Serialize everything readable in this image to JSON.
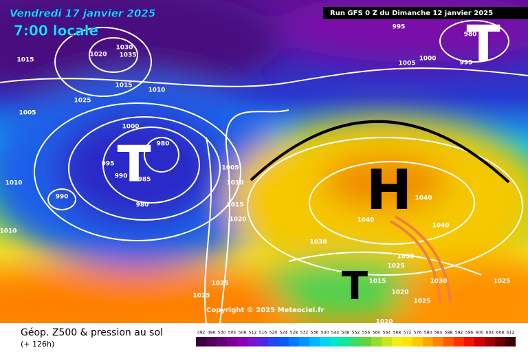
{
  "header": {
    "date": "Vendredi 17 janvier 2025",
    "time": "7:00 locale",
    "run": "Run GFS 0 Z du Dimanche 12 janvier 2025"
  },
  "footer": {
    "title": "Géop. Z500 & pression au sol",
    "lead": "(+ 126h)",
    "copyright": "Copyright © 2025 Meteociel.fr"
  },
  "legend": {
    "values": [
      492,
      496,
      500,
      504,
      508,
      512,
      516,
      520,
      524,
      528,
      532,
      536,
      540,
      544,
      548,
      552,
      556,
      560,
      564,
      568,
      572,
      576,
      580,
      584,
      588,
      592,
      596,
      600,
      604,
      608,
      612
    ],
    "colors": [
      "#3c0040",
      "#50005a",
      "#640078",
      "#780096",
      "#8c00b4",
      "#7814c8",
      "#5028dc",
      "#2846f0",
      "#0a5af5",
      "#0078ff",
      "#0096ff",
      "#00b4ff",
      "#00d2f0",
      "#00e6c8",
      "#14e696",
      "#3cdc64",
      "#64d23c",
      "#96dc28",
      "#c8e61e",
      "#f0f014",
      "#ffe600",
      "#ffc800",
      "#ffa500",
      "#ff8200",
      "#ff5a00",
      "#ff3200",
      "#f01400",
      "#d20000",
      "#a00000",
      "#6e0000",
      "#3c0000"
    ]
  },
  "pressure_labels": [
    1015,
    1020,
    1030,
    1035,
    1025,
    1015,
    1010,
    1005,
    1000,
    980,
    995,
    990,
    985,
    980,
    990,
    1010,
    1010,
    1005,
    1010,
    1015,
    1020,
    995,
    1005,
    1000,
    980,
    995,
    1040,
    1040,
    1040,
    1030,
    1030,
    1025,
    1015,
    1020,
    1025,
    1030,
    1025,
    1025,
    1025,
    1020
  ],
  "systems": [
    "T",
    "H",
    "T",
    "T"
  ]
}
